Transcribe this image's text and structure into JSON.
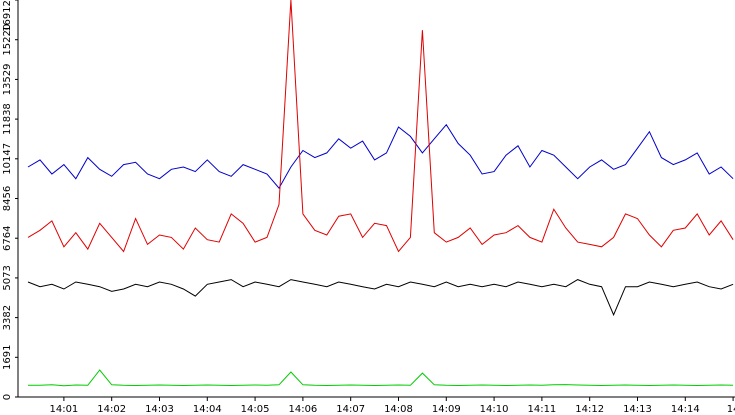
{
  "chart_data": {
    "type": "line",
    "x": [
      0.25,
      0.5,
      0.75,
      1,
      1.25,
      1.5,
      1.75,
      2,
      2.25,
      2.5,
      2.75,
      3,
      3.25,
      3.5,
      3.75,
      4,
      4.25,
      4.5,
      4.75,
      5,
      5.25,
      5.5,
      5.75,
      6,
      6.25,
      6.5,
      6.75,
      7,
      7.25,
      7.5,
      7.75,
      8,
      8.25,
      8.5,
      8.75,
      9,
      9.25,
      9.5,
      9.75,
      10,
      10.25,
      10.5,
      10.75,
      11,
      11.25,
      11.5,
      11.75,
      12,
      12.25,
      12.5,
      12.75,
      13,
      13.25,
      13.5,
      13.75,
      14,
      14.25,
      14.5,
      14.75,
      15
    ],
    "xlim": [
      0.04,
      15.04
    ],
    "xticks": [
      {
        "value": 1,
        "label": "14:01"
      },
      {
        "value": 2,
        "label": "14:02"
      },
      {
        "value": 3,
        "label": "14:03"
      },
      {
        "value": 4,
        "label": "14:04"
      },
      {
        "value": 5,
        "label": "14:05"
      },
      {
        "value": 6,
        "label": "14:06"
      },
      {
        "value": 7,
        "label": "14:07"
      },
      {
        "value": 8,
        "label": "14:08"
      },
      {
        "value": 9,
        "label": "14:09"
      },
      {
        "value": 10,
        "label": "14:10"
      },
      {
        "value": 11,
        "label": "14:11"
      },
      {
        "value": 12,
        "label": "14:12"
      },
      {
        "value": 13,
        "label": "14:13"
      },
      {
        "value": 14,
        "label": "14:14"
      },
      {
        "value": 15,
        "label": "14"
      }
    ],
    "ylim": [
      0,
      16912
    ],
    "yticks": [
      0,
      1691,
      3382,
      5073,
      6764,
      8456,
      10147,
      11838,
      13529,
      15220,
      16912
    ],
    "series": [
      {
        "color": "#0000cc",
        "values": [
          9800,
          10100,
          9500,
          9900,
          9300,
          10200,
          9700,
          9400,
          9900,
          10000,
          9500,
          9300,
          9700,
          9800,
          9600,
          10100,
          9600,
          9400,
          9900,
          9700,
          9500,
          8900,
          9800,
          10500,
          10200,
          10400,
          11000,
          10600,
          10900,
          10100,
          10400,
          11500,
          11100,
          10400,
          11000,
          11600,
          10800,
          10300,
          9500,
          9600,
          10300,
          10700,
          9800,
          10500,
          10300,
          9800,
          9300,
          9800,
          10100,
          9700,
          9900,
          10600,
          11300,
          10200,
          9900,
          10100,
          10400,
          9500,
          9800,
          9300
        ]
      },
      {
        "color": "#e00000",
        "values": [
          6800,
          7100,
          7500,
          6400,
          7000,
          6300,
          7400,
          6800,
          6200,
          7600,
          6500,
          6900,
          6800,
          6300,
          7200,
          6700,
          6600,
          7800,
          7400,
          6600,
          6800,
          8200,
          16912,
          7800,
          7100,
          6900,
          7700,
          7800,
          6800,
          7400,
          7300,
          6200,
          6800,
          15630,
          7000,
          6600,
          6800,
          7200,
          6500,
          6900,
          7000,
          7300,
          6800,
          6600,
          8000,
          7200,
          6600,
          6500,
          6400,
          6800,
          7800,
          7600,
          6900,
          6400,
          7100,
          7200,
          7800,
          6900,
          7500,
          6700
        ]
      },
      {
        "color": "#000000",
        "values": [
          4900,
          4700,
          4800,
          4600,
          4900,
          4800,
          4700,
          4500,
          4600,
          4800,
          4700,
          4900,
          4800,
          4600,
          4300,
          4800,
          4900,
          5000,
          4700,
          4900,
          4800,
          4700,
          5000,
          4900,
          4800,
          4700,
          4900,
          4800,
          4700,
          4600,
          4800,
          4700,
          4900,
          4800,
          4700,
          4900,
          4700,
          4800,
          4700,
          4800,
          4700,
          4900,
          4800,
          4700,
          4800,
          4700,
          5000,
          4800,
          4700,
          3500,
          4700,
          4700,
          4900,
          4800,
          4700,
          4800,
          4900,
          4700,
          4600,
          4800
        ]
      },
      {
        "color": "#00cc00",
        "values": [
          500,
          500,
          520,
          480,
          510,
          500,
          1150,
          520,
          500,
          490,
          500,
          510,
          500,
          490,
          500,
          510,
          500,
          490,
          500,
          510,
          500,
          520,
          1065,
          520,
          500,
          490,
          500,
          510,
          500,
          490,
          500,
          510,
          500,
          1020,
          520,
          500,
          490,
          500,
          510,
          500,
          490,
          500,
          510,
          500,
          520,
          530,
          510,
          500,
          490,
          500,
          510,
          500,
          490,
          500,
          510,
          500,
          490,
          500,
          510,
          500
        ]
      }
    ]
  }
}
